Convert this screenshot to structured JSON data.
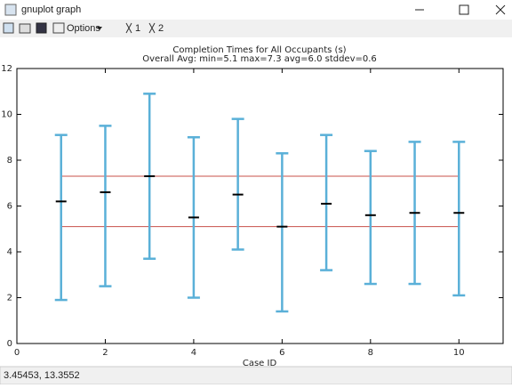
{
  "window": {
    "title": "gnuplot graph",
    "toolbar": {
      "options": "Options",
      "buttons": [
        "1",
        "2"
      ]
    },
    "status": "3.45453, 13.3552"
  },
  "chart_data": {
    "type": "errorbar",
    "title": "Completion Times for All Occupants (s)",
    "subtitle": "Overall Avg: min=5.1 max=7.3 avg=6.0 stddev=0.6",
    "x_label": "Case ID",
    "x": [
      1,
      2,
      3,
      4,
      5,
      6,
      7,
      8,
      9,
      10
    ],
    "values": [
      6.2,
      6.6,
      7.3,
      5.5,
      6.5,
      5.1,
      6.1,
      5.6,
      5.7,
      5.7
    ],
    "low": [
      1.9,
      2.5,
      3.7,
      2.0,
      4.1,
      1.4,
      3.2,
      2.6,
      2.6,
      2.1
    ],
    "high": [
      9.1,
      9.5,
      10.9,
      9.0,
      9.8,
      8.3,
      9.1,
      8.4,
      8.8,
      8.8
    ],
    "bar_color": "#5ab0d8",
    "mean_color": "#000000",
    "hlines": [
      {
        "value": 7.3,
        "color": "#c8504a"
      },
      {
        "value": 5.1,
        "color": "#c8504a"
      }
    ],
    "xlim": [
      0,
      11
    ],
    "xticks": [
      0,
      2,
      4,
      6,
      8,
      10
    ],
    "ylim": [
      0,
      12
    ],
    "yticks": [
      0,
      2,
      4,
      6,
      8,
      10,
      12
    ]
  }
}
